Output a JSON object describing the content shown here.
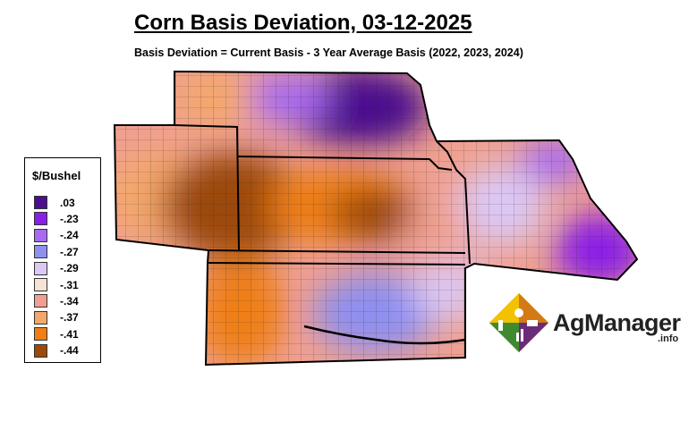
{
  "title": "Corn Basis Deviation, 03-12-2025",
  "subtitle": "Basis Deviation = Current Basis - 3 Year Average Basis (2022, 2023, 2024)",
  "legend": {
    "title": "$/Bushel",
    "items": [
      {
        "label": ".03",
        "color": "#4b0f8f"
      },
      {
        "label": "-.23",
        "color": "#8a1fe8"
      },
      {
        "label": "-.24",
        "color": "#a86af0"
      },
      {
        "label": "-.27",
        "color": "#8f8ff0"
      },
      {
        "label": "-.29",
        "color": "#dcc8f4"
      },
      {
        "label": "-.31",
        "color": "#f6e3d6"
      },
      {
        "label": "-.34",
        "color": "#f0a090"
      },
      {
        "label": "-.37",
        "color": "#f4a86a"
      },
      {
        "label": "-.41",
        "color": "#ef7f16"
      },
      {
        "label": "-.44",
        "color": "#9c4a08"
      }
    ]
  },
  "branding": {
    "name": "AgManager",
    "suffix": ".info"
  }
}
